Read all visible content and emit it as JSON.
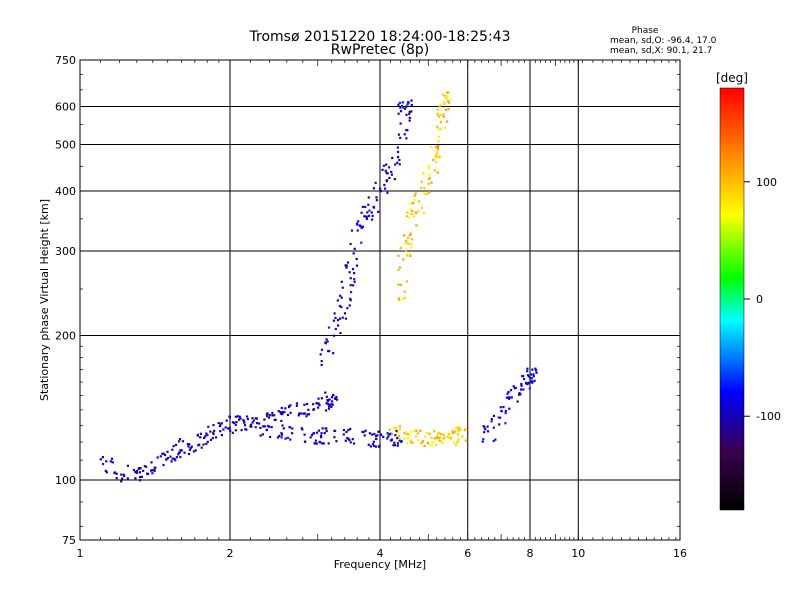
{
  "chart_data": {
    "type": "scatter",
    "title": "Tromsø 20151220 18:24:00-18:25:43",
    "subtitle": "RwPretec (8p)",
    "xlabel": "Frequency [MHz]",
    "ylabel": "Stationary phase Virtual Height [km]",
    "x_scale": "log",
    "y_scale": "log",
    "xlim": [
      1,
      16
    ],
    "ylim": [
      75,
      750
    ],
    "x_ticks": [
      1,
      2,
      4,
      6,
      8,
      10,
      16
    ],
    "x_tick_labels": [
      "1",
      "2",
      "4",
      "6",
      "8",
      "10",
      "16"
    ],
    "y_ticks": [
      75,
      100,
      200,
      300,
      400,
      500,
      600,
      750
    ],
    "y_tick_labels": [
      "75",
      "100",
      "200",
      "300",
      "400",
      "500",
      "600",
      "750"
    ],
    "grid": true,
    "stats": {
      "heading": "Phase",
      "line1": "mean, sd,O: -96.4, 17.0",
      "line2": "mean, sd,X:  90.1, 21.7"
    },
    "colorbar": {
      "unit": "[deg]",
      "range": [
        -180,
        180
      ],
      "tick_values": [
        100,
        0,
        -100
      ],
      "tick_labels": [
        "100",
        "0",
        "-100"
      ],
      "colors": [
        "#000000",
        "#3a004f",
        "#0000ff",
        "#00ffff",
        "#00ff00",
        "#ffff00",
        "#ff8000",
        "#ff0000"
      ]
    },
    "traces": [
      {
        "name": "O-mode E/F1 low-frequency trace",
        "phase_deg": -100,
        "points": [
          [
            1.12,
            108
          ],
          [
            1.22,
            103
          ],
          [
            1.32,
            104
          ],
          [
            1.42,
            107
          ],
          [
            1.52,
            112
          ],
          [
            1.62,
            117
          ],
          [
            1.72,
            120
          ],
          [
            1.82,
            126
          ],
          [
            1.95,
            130
          ],
          [
            2.05,
            131
          ],
          [
            2.2,
            132
          ],
          [
            2.4,
            134
          ],
          [
            2.6,
            138
          ],
          [
            2.8,
            140
          ],
          [
            3.0,
            143
          ],
          [
            3.2,
            147
          ]
        ]
      },
      {
        "name": "O-mode F-layer base trace",
        "phase_deg": -96,
        "points": [
          [
            2.3,
            128
          ],
          [
            2.6,
            125
          ],
          [
            2.9,
            124
          ],
          [
            3.1,
            124
          ],
          [
            3.4,
            123
          ],
          [
            3.7,
            122
          ],
          [
            4.0,
            122
          ],
          [
            4.3,
            122
          ]
        ]
      },
      {
        "name": "O-mode F-layer cusp",
        "phase_deg": -95,
        "points": [
          [
            3.1,
            180
          ],
          [
            3.3,
            210
          ],
          [
            3.4,
            240
          ],
          [
            3.5,
            280
          ],
          [
            3.6,
            330
          ],
          [
            3.8,
            360
          ],
          [
            4.0,
            400
          ],
          [
            4.2,
            450
          ],
          [
            4.4,
            520
          ],
          [
            4.5,
            600
          ]
        ]
      },
      {
        "name": "X-mode F-layer trace",
        "phase_deg": 90,
        "points": [
          [
            4.3,
            125
          ],
          [
            4.6,
            123
          ],
          [
            4.9,
            122
          ],
          [
            5.2,
            122
          ],
          [
            5.5,
            122
          ],
          [
            5.8,
            124
          ]
        ]
      },
      {
        "name": "X-mode F-layer cusp",
        "phase_deg": 95,
        "points": [
          [
            4.4,
            240
          ],
          [
            4.5,
            300
          ],
          [
            4.6,
            350
          ],
          [
            4.8,
            380
          ],
          [
            5.0,
            420
          ],
          [
            5.2,
            480
          ],
          [
            5.3,
            560
          ],
          [
            5.4,
            620
          ]
        ]
      },
      {
        "name": "High-frequency oblique echoes",
        "phase_deg": -90,
        "points": [
          [
            6.6,
            125
          ],
          [
            7.0,
            135
          ],
          [
            7.4,
            150
          ],
          [
            7.8,
            160
          ],
          [
            8.0,
            165
          ]
        ]
      }
    ]
  }
}
